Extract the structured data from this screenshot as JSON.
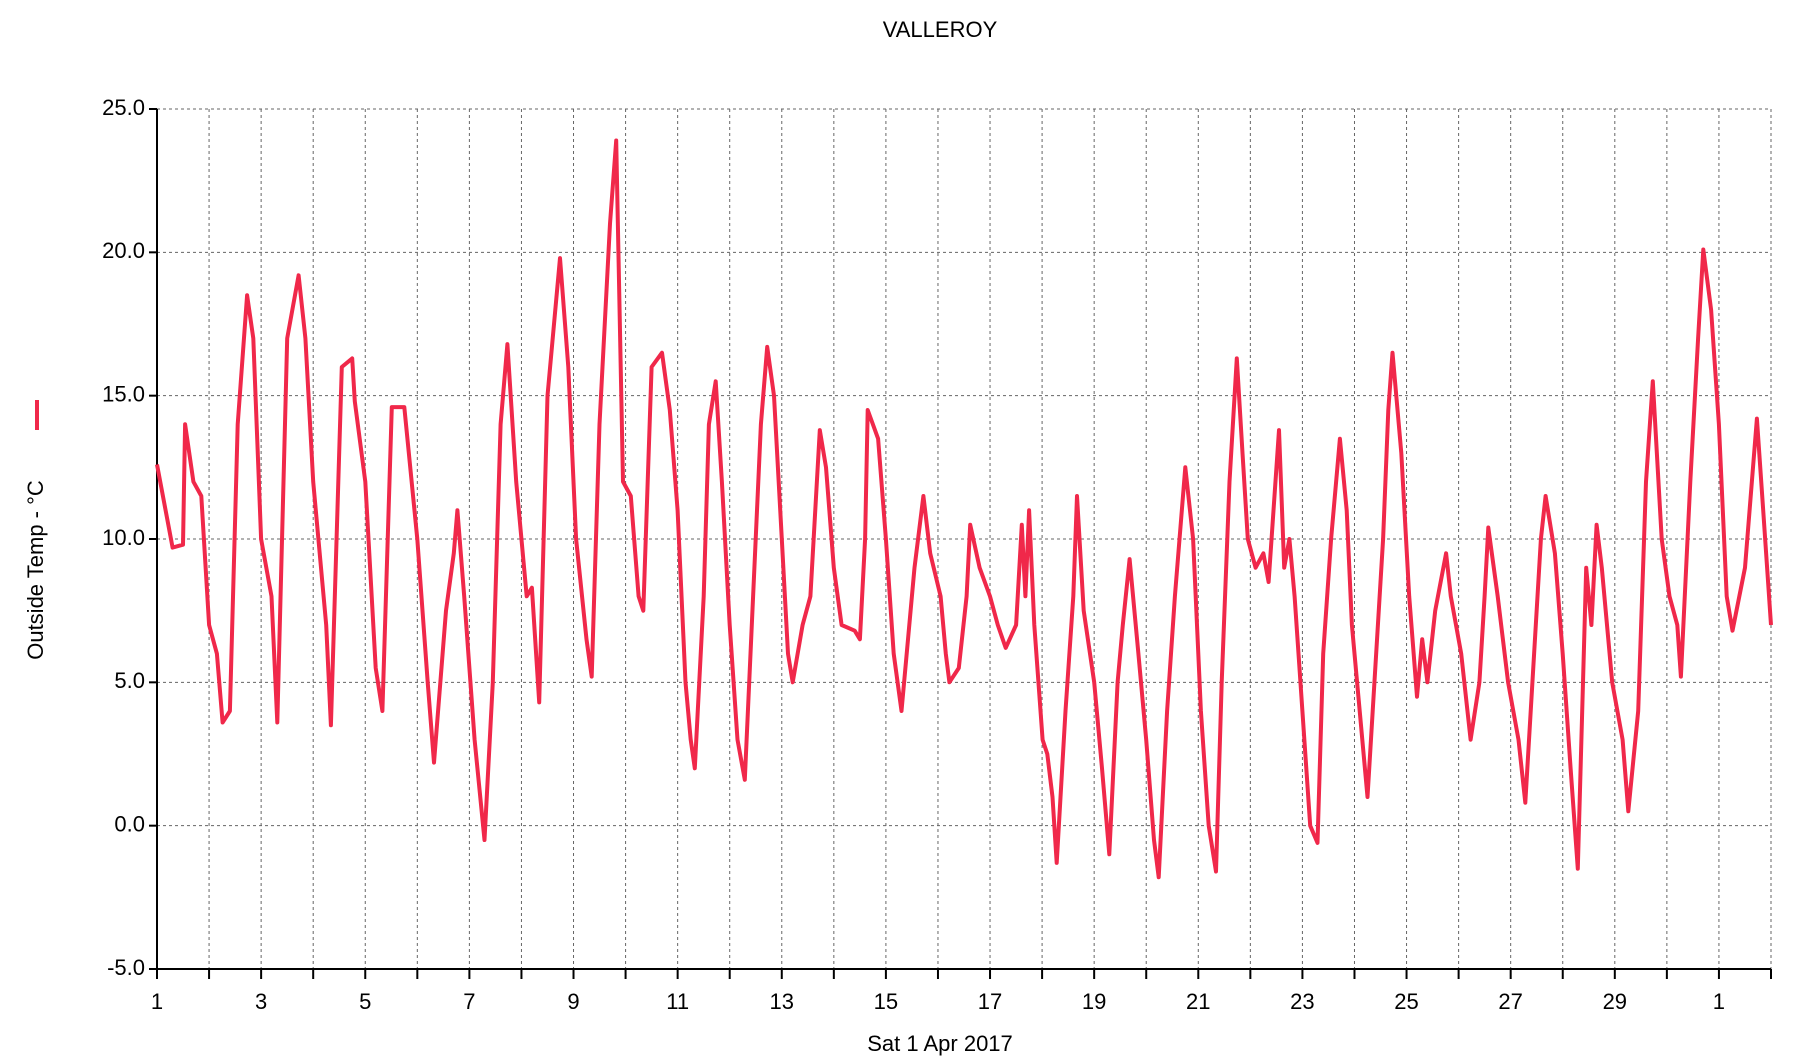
{
  "chart_data": {
    "type": "line",
    "title": "VALLEROY",
    "x_label": "Sat 1 Apr 2017",
    "xlim": [
      0,
      31
    ],
    "ylim": [
      -5,
      25
    ],
    "yticks": [
      {
        "value": -5,
        "label": "-5.0"
      },
      {
        "value": 0,
        "label": "0.0"
      },
      {
        "value": 5,
        "label": "5.0"
      },
      {
        "value": 10,
        "label": "10.0"
      },
      {
        "value": 15,
        "label": "15.0"
      },
      {
        "value": 20,
        "label": "20.0"
      },
      {
        "value": 25,
        "label": "25.0"
      }
    ],
    "xticks": [
      {
        "value": 0,
        "label": "1"
      },
      {
        "value": 1,
        "label": null
      },
      {
        "value": 2,
        "label": "3"
      },
      {
        "value": 3,
        "label": null
      },
      {
        "value": 4,
        "label": "5"
      },
      {
        "value": 5,
        "label": null
      },
      {
        "value": 6,
        "label": "7"
      },
      {
        "value": 7,
        "label": null
      },
      {
        "value": 8,
        "label": "9"
      },
      {
        "value": 9,
        "label": null
      },
      {
        "value": 10,
        "label": "11"
      },
      {
        "value": 11,
        "label": null
      },
      {
        "value": 12,
        "label": "13"
      },
      {
        "value": 13,
        "label": null
      },
      {
        "value": 14,
        "label": "15"
      },
      {
        "value": 15,
        "label": null
      },
      {
        "value": 16,
        "label": "17"
      },
      {
        "value": 17,
        "label": null
      },
      {
        "value": 18,
        "label": "19"
      },
      {
        "value": 19,
        "label": null
      },
      {
        "value": 20,
        "label": "21"
      },
      {
        "value": 21,
        "label": null
      },
      {
        "value": 22,
        "label": "23"
      },
      {
        "value": 23,
        "label": null
      },
      {
        "value": 24,
        "label": "25"
      },
      {
        "value": 25,
        "label": null
      },
      {
        "value": 26,
        "label": "27"
      },
      {
        "value": 27,
        "label": null
      },
      {
        "value": 28,
        "label": "29"
      },
      {
        "value": 29,
        "label": null
      },
      {
        "value": 30,
        "label": "1"
      },
      {
        "value": 31,
        "label": null
      }
    ],
    "grid": true,
    "legend": "left",
    "x": [
      0,
      0.3,
      0.5,
      0.54,
      0.7,
      0.85,
      1.0,
      1.15,
      1.26,
      1.4,
      1.55,
      1.73,
      1.85,
      2.0,
      2.2,
      2.31,
      2.5,
      2.72,
      2.85,
      3.0,
      3.25,
      3.34,
      3.55,
      3.75,
      3.8,
      4.0,
      4.2,
      4.33,
      4.51,
      4.75,
      5.0,
      5.2,
      5.32,
      5.55,
      5.7,
      5.77,
      5.9,
      6.1,
      6.29,
      6.45,
      6.6,
      6.73,
      6.9,
      7.1,
      7.2,
      7.34,
      7.5,
      7.74,
      7.9,
      8.05,
      8.25,
      8.35,
      8.5,
      8.7,
      8.82,
      8.95,
      9.1,
      9.25,
      9.34,
      9.5,
      9.7,
      9.85,
      10.0,
      10.15,
      10.25,
      10.33,
      10.5,
      10.6,
      10.73,
      10.85,
      11.0,
      11.15,
      11.29,
      11.45,
      11.6,
      11.72,
      11.85,
      12.0,
      12.12,
      12.21,
      12.4,
      12.55,
      12.73,
      12.85,
      13.0,
      13.15,
      13.4,
      13.5,
      13.6,
      13.65,
      13.85,
      14.0,
      14.15,
      14.3,
      14.55,
      14.72,
      14.85,
      15.05,
      15.15,
      15.22,
      15.4,
      15.55,
      15.62,
      15.8,
      16.0,
      16.15,
      16.3,
      16.5,
      16.61,
      16.68,
      16.75,
      16.85,
      17.01,
      17.1,
      17.2,
      17.28,
      17.45,
      17.6,
      17.67,
      17.8,
      18.0,
      18.15,
      18.29,
      18.45,
      18.55,
      18.68,
      18.85,
      19.0,
      19.15,
      19.24,
      19.4,
      19.55,
      19.75,
      19.9,
      20.05,
      20.2,
      20.34,
      20.45,
      20.6,
      20.74,
      20.85,
      20.95,
      21.1,
      21.25,
      21.35,
      21.55,
      21.65,
      21.75,
      21.85,
      22.0,
      22.15,
      22.29,
      22.4,
      22.55,
      22.72,
      22.85,
      22.95,
      23.05,
      23.25,
      23.35,
      23.55,
      23.65,
      23.73,
      23.9,
      24.05,
      24.2,
      24.3,
      24.4,
      24.55,
      24.76,
      24.85,
      25.05,
      25.23,
      25.4,
      25.5,
      25.57,
      25.75,
      25.95,
      26.15,
      26.28,
      26.45,
      26.58,
      26.67,
      26.85,
      27.0,
      27.15,
      27.29,
      27.45,
      27.55,
      27.65,
      27.75,
      27.95,
      28.15,
      28.26,
      28.45,
      28.6,
      28.73,
      28.9,
      29.05,
      29.2,
      29.27,
      29.45,
      29.6,
      29.7,
      29.85,
      30.0,
      30.15,
      30.26,
      30.5,
      30.73,
      30.85,
      31.0
    ],
    "series": [
      {
        "name": "Outside Temp - °C",
        "color": "#f0284a",
        "values": [
          12.6,
          9.7,
          9.8,
          14,
          12,
          11.5,
          7,
          6,
          3.6,
          4,
          14,
          18.5,
          17,
          10,
          8,
          3.6,
          17,
          19.2,
          17,
          12,
          7,
          3.5,
          16,
          16.3,
          14.8,
          12,
          5.5,
          4,
          14.6,
          14.6,
          10,
          5,
          2.2,
          7.5,
          9.5,
          11,
          8,
          3,
          -0.5,
          5,
          14,
          16.8,
          12,
          8,
          8.3,
          4.3,
          15,
          19.8,
          16,
          10,
          6.5,
          5.2,
          14,
          21,
          23.9,
          12,
          11.5,
          8,
          7.5,
          16,
          16.5,
          14.5,
          11,
          5,
          3,
          2,
          8,
          14,
          15.5,
          12,
          7,
          3,
          1.6,
          8,
          14,
          16.7,
          15,
          10,
          6,
          5,
          7,
          8,
          13.8,
          12.5,
          9,
          7,
          6.8,
          6.5,
          10,
          14.5,
          13.5,
          10,
          6,
          4,
          9,
          11.5,
          9.5,
          8,
          6,
          5,
          5.5,
          8,
          10.5,
          9,
          8,
          7,
          6.2,
          7,
          10.5,
          8,
          11,
          7,
          3,
          2.5,
          1,
          -1.3,
          4,
          8,
          11.5,
          7.5,
          5,
          2,
          -1,
          5,
          7,
          9.3,
          6,
          3,
          -0.5,
          -1.8,
          4,
          8,
          12.5,
          10,
          4,
          0,
          -1.6,
          5,
          12,
          16.3,
          13,
          10,
          9,
          9.5,
          8.5,
          13.8,
          9,
          10,
          8,
          4,
          0,
          -0.6,
          6,
          10,
          13.5,
          11,
          7,
          5,
          1,
          4,
          10,
          14.5,
          16.5,
          13,
          8,
          4.5,
          6.5,
          5,
          7.5,
          9.5,
          8,
          6,
          3,
          5,
          8,
          10.4,
          8,
          5,
          3,
          0.8,
          6,
          10,
          11.5,
          9.5,
          6,
          2,
          -1.5,
          9,
          7,
          10.5,
          9,
          5,
          3,
          0.5,
          4,
          12,
          15.5,
          10,
          8,
          7,
          5.2,
          12,
          17,
          20.1,
          18,
          14,
          8,
          6.8,
          9,
          14.2,
          11,
          7
        ]
      }
    ]
  }
}
